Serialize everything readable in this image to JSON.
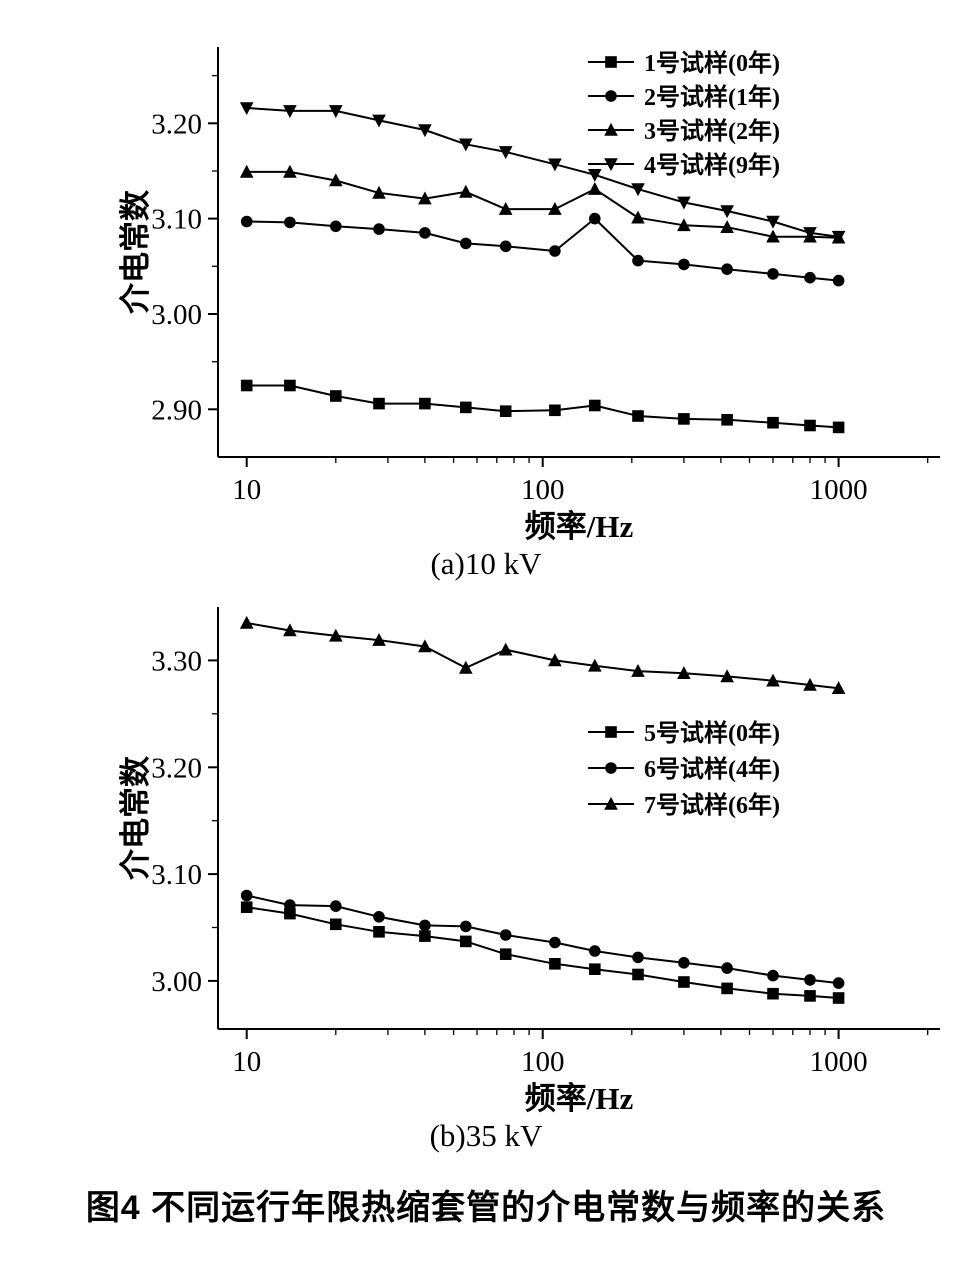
{
  "figure": {
    "caption": "图4  不同运行年限热缩套管的介电常数与频率的关系",
    "subcaption_a": "(a)10 kV",
    "subcaption_b": "(b)35 kV"
  },
  "chart_data": [
    {
      "type": "line",
      "title": "(a)10 kV",
      "xlabel": "频率/Hz",
      "ylabel": "介电常数",
      "xscale": "log",
      "xlim": [
        8,
        2200
      ],
      "ylim": [
        2.85,
        3.28
      ],
      "xticks": [
        10,
        100,
        1000
      ],
      "xminor": [
        20,
        30,
        40,
        50,
        60,
        70,
        80,
        90,
        200,
        300,
        400,
        500,
        600,
        700,
        800,
        900,
        2000
      ],
      "yticks": [
        2.9,
        3.0,
        3.1,
        3.2
      ],
      "yminor": [
        2.95,
        3.05,
        3.15,
        3.25
      ],
      "grid": false,
      "legend_position": "top-right",
      "x": [
        10,
        14,
        20,
        28,
        40,
        55,
        75,
        110,
        150,
        210,
        300,
        420,
        600,
        800,
        1000
      ],
      "series": [
        {
          "name": "1号试样(0年)",
          "marker": "square",
          "values": [
            2.925,
            2.925,
            2.914,
            2.906,
            2.906,
            2.902,
            2.898,
            2.899,
            2.904,
            2.893,
            2.89,
            2.889,
            2.886,
            2.883,
            2.881
          ]
        },
        {
          "name": "2号试样(1年)",
          "marker": "circle",
          "values": [
            3.097,
            3.096,
            3.092,
            3.089,
            3.085,
            3.074,
            3.071,
            3.066,
            3.1,
            3.056,
            3.052,
            3.047,
            3.042,
            3.038,
            3.035
          ]
        },
        {
          "name": "3号试样(2年)",
          "marker": "triangle-up",
          "values": [
            3.149,
            3.149,
            3.14,
            3.127,
            3.121,
            3.128,
            3.11,
            3.11,
            3.131,
            3.101,
            3.093,
            3.091,
            3.081,
            3.081,
            3.08
          ]
        },
        {
          "name": "4号试样(9年)",
          "marker": "triangle-down",
          "values": [
            3.216,
            3.213,
            3.213,
            3.203,
            3.193,
            3.178,
            3.17,
            3.157,
            3.146,
            3.131,
            3.117,
            3.108,
            3.097,
            3.085,
            3.081
          ]
        }
      ]
    },
    {
      "type": "line",
      "title": "(b)35 kV",
      "xlabel": "频率/Hz",
      "ylabel": "介电常数",
      "xscale": "log",
      "xlim": [
        8,
        2200
      ],
      "ylim": [
        2.955,
        3.35
      ],
      "xticks": [
        10,
        100,
        1000
      ],
      "xminor": [
        20,
        30,
        40,
        50,
        60,
        70,
        80,
        90,
        200,
        300,
        400,
        500,
        600,
        700,
        800,
        900,
        2000
      ],
      "yticks": [
        3.0,
        3.1,
        3.2,
        3.3
      ],
      "yminor": [
        3.05,
        3.15,
        3.25
      ],
      "grid": false,
      "legend_position": "middle-right",
      "x": [
        10,
        14,
        20,
        28,
        40,
        55,
        75,
        110,
        150,
        210,
        300,
        420,
        600,
        800,
        1000
      ],
      "series": [
        {
          "name": "5号试样(0年)",
          "marker": "square",
          "values": [
            3.069,
            3.063,
            3.053,
            3.046,
            3.042,
            3.037,
            3.025,
            3.016,
            3.011,
            3.006,
            2.999,
            2.993,
            2.988,
            2.986,
            2.984
          ]
        },
        {
          "name": "6号试样(4年)",
          "marker": "circle",
          "values": [
            3.08,
            3.071,
            3.07,
            3.06,
            3.052,
            3.051,
            3.043,
            3.036,
            3.028,
            3.022,
            3.017,
            3.012,
            3.005,
            3.001,
            2.998
          ]
        },
        {
          "name": "7号试样(6年)",
          "marker": "triangle-up",
          "values": [
            3.335,
            3.328,
            3.323,
            3.319,
            3.313,
            3.293,
            3.31,
            3.3,
            3.295,
            3.29,
            3.288,
            3.285,
            3.281,
            3.277,
            3.274
          ]
        }
      ]
    }
  ]
}
